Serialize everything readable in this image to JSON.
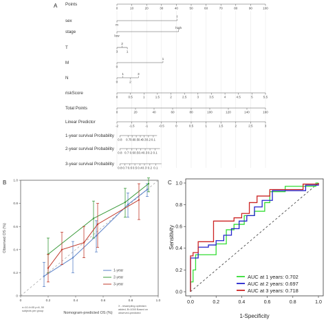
{
  "panels": {
    "a": "A",
    "b": "B",
    "c": "C"
  },
  "chart_data": [
    {
      "type": "nomogram",
      "rows": [
        {
          "label": "Points",
          "kind": "scale",
          "ticks": [
            0,
            10,
            20,
            30,
            40,
            50,
            60,
            70,
            80,
            90,
            100
          ],
          "min": 0,
          "max": 100
        },
        {
          "label": "sex",
          "kind": "factor",
          "line": [
            0,
            40.5
          ],
          "levels": [
            {
              "text": "m",
              "pos": 0,
              "side": "below"
            },
            {
              "text": "f",
              "pos": 40.5,
              "side": "above"
            }
          ]
        },
        {
          "label": "stage",
          "kind": "factor",
          "line": [
            0,
            41.5
          ],
          "levels": [
            {
              "text": "low",
              "pos": 0,
              "side": "below"
            },
            {
              "text": "high",
              "pos": 41.5,
              "side": "above"
            }
          ]
        },
        {
          "label": "T",
          "kind": "factor",
          "line": [
            0,
            7
          ],
          "levels": [
            {
              "text": "2",
              "pos": 3.5,
              "side": "above"
            },
            {
              "text": "3",
              "pos": 0,
              "side": "below"
            },
            {
              "text": "1",
              "pos": 7,
              "side": "below"
            }
          ]
        },
        {
          "label": "M",
          "kind": "factor",
          "line": [
            0,
            31
          ],
          "levels": [
            {
              "text": "0",
              "pos": 0,
              "side": "below"
            },
            {
              "text": "1",
              "pos": 31,
              "side": "above"
            }
          ]
        },
        {
          "label": "N",
          "kind": "factor",
          "line": [
            0,
            14.5
          ],
          "levels": [
            {
              "text": "1",
              "pos": 4,
              "side": "above"
            },
            {
              "text": "3",
              "pos": 14.5,
              "side": "above"
            },
            {
              "text": "0",
              "pos": 0,
              "side": "below"
            },
            {
              "text": "2",
              "pos": 9,
              "side": "below"
            }
          ]
        },
        {
          "label": "riskScore",
          "kind": "scale",
          "ticks": [
            0,
            0.5,
            1,
            1.5,
            2,
            2.5,
            3,
            3.5,
            4,
            4.5,
            5,
            5.5
          ],
          "min": 0,
          "max": 5.5
        },
        {
          "label": "Total Points",
          "kind": "scale",
          "ticks": [
            0,
            20,
            40,
            60,
            80,
            100,
            120,
            140,
            160
          ],
          "min": 0,
          "max": 160
        },
        {
          "label": "Linear Predictor",
          "kind": "scale",
          "ticks": [
            -2,
            -1.5,
            -1,
            -0.5,
            0,
            0.5,
            1,
            1.5,
            2,
            2.5,
            3
          ],
          "min": -2,
          "max": 3
        },
        {
          "label": "1-year survival Probability",
          "kind": "ticks",
          "ticks": [
            "0.8",
            "0.7",
            "0.6",
            "0.5",
            "0.4",
            "0.3",
            "0.2",
            "0.1"
          ],
          "pos": [
            0,
            0.22,
            0.33,
            0.44,
            0.55,
            0.65,
            0.77,
            0.9
          ],
          "span": [
            0.02,
            0.27
          ]
        },
        {
          "label": "2-year survival Probability",
          "kind": "ticks",
          "ticks": [
            "0.8",
            "0.7",
            "0.6",
            "0.5",
            "0.4",
            "0.3",
            "0.2",
            "0.1"
          ],
          "pos": [
            0,
            0.17,
            0.3,
            0.41,
            0.52,
            0.63,
            0.75,
            0.88
          ],
          "span": [
            0.02,
            0.29
          ]
        },
        {
          "label": "3-year survival Probability",
          "kind": "ticks",
          "ticks": [
            "0.8",
            "0.7",
            "0.6",
            "0.5",
            "0.4",
            "0.3",
            "0.2",
            "0.1"
          ],
          "pos": [
            0,
            0.12,
            0.24,
            0.36,
            0.48,
            0.59,
            0.72,
            0.86
          ],
          "span": [
            0.02,
            0.3
          ]
        }
      ]
    },
    {
      "type": "line",
      "xlabel": "Nomogram-predicted OS (%)",
      "ylabel": "Observed OS (%)",
      "xlim": [
        0,
        1
      ],
      "ylim": [
        0,
        1
      ],
      "xticks": [
        "0",
        "0.2",
        "0.4",
        "0.6",
        "0.8",
        "1.0"
      ],
      "yticks": [
        "0",
        "0.2",
        "0.4",
        "0.6",
        "0.8",
        "1.0"
      ],
      "legend_position": "bottom-right",
      "note_left": "n=10.4<05 p=6, 50\nsubjects per group",
      "note_right": "X - resampling optimism\nadded, B=1000 Based on\nobserved-predicted",
      "series": [
        {
          "name": "1-year",
          "color": "#5a82c8",
          "x": [
            0.17,
            0.38,
            0.55,
            0.78,
            0.92
          ],
          "y": [
            0.17,
            0.33,
            0.52,
            0.79,
            0.92
          ],
          "err": [
            [
              0.08,
              0.29
            ],
            [
              0.2,
              0.47
            ],
            [
              0.38,
              0.65
            ],
            [
              0.68,
              0.89
            ],
            [
              0.86,
              0.97
            ]
          ]
        },
        {
          "name": "2-year",
          "color": "#3a9a3a",
          "x": [
            0.2,
            0.53,
            0.76,
            0.93
          ],
          "y": [
            0.36,
            0.67,
            0.81,
            0.97
          ],
          "err": [
            [
              0.2,
              0.5
            ],
            [
              0.5,
              0.82
            ],
            [
              0.68,
              0.93
            ],
            [
              0.9,
              1.02
            ]
          ]
        },
        {
          "name": "3-year",
          "color": "#c0392b",
          "x": [
            0.2,
            0.3,
            0.46,
            0.56,
            0.86
          ],
          "y": [
            0.24,
            0.4,
            0.46,
            0.62,
            0.83
          ],
          "err": [
            [
              0.12,
              0.36
            ],
            [
              0.27,
              0.55
            ],
            [
              0.33,
              0.6
            ],
            [
              0.42,
              0.8
            ],
            [
              0.66,
              0.97
            ]
          ]
        }
      ]
    },
    {
      "type": "line",
      "xlabel": "1-Specificity",
      "ylabel": "Sensitivity",
      "xlim": [
        0,
        1
      ],
      "ylim": [
        0,
        1
      ],
      "xticks": [
        "0.0",
        "0.2",
        "0.4",
        "0.6",
        "0.8",
        "1.0"
      ],
      "yticks": [
        "0.0",
        "0.2",
        "0.4",
        "0.6",
        "0.8",
        "1.0"
      ],
      "legend_position": "bottom-right",
      "series": [
        {
          "name": "AUC at 1 years: 0.702",
          "color": "#33dd33",
          "points": [
            [
              0,
              0
            ],
            [
              0,
              0.09
            ],
            [
              0.02,
              0.09
            ],
            [
              0.02,
              0.2
            ],
            [
              0.04,
              0.2
            ],
            [
              0.04,
              0.34
            ],
            [
              0.2,
              0.34
            ],
            [
              0.2,
              0.44
            ],
            [
              0.28,
              0.44
            ],
            [
              0.28,
              0.57
            ],
            [
              0.34,
              0.57
            ],
            [
              0.34,
              0.62
            ],
            [
              0.42,
              0.62
            ],
            [
              0.42,
              0.7
            ],
            [
              0.5,
              0.7
            ],
            [
              0.5,
              0.74
            ],
            [
              0.58,
              0.74
            ],
            [
              0.58,
              0.82
            ],
            [
              0.62,
              0.82
            ],
            [
              0.62,
              0.92
            ],
            [
              0.74,
              0.92
            ],
            [
              0.74,
              0.97
            ],
            [
              0.98,
              0.97
            ],
            [
              0.98,
              1
            ],
            [
              1,
              1
            ]
          ]
        },
        {
          "name": "AUC at 2 years: 0.697",
          "color": "#2222cc",
          "points": [
            [
              0,
              0
            ],
            [
              0,
              0.31
            ],
            [
              0.06,
              0.31
            ],
            [
              0.06,
              0.41
            ],
            [
              0.14,
              0.41
            ],
            [
              0.14,
              0.43
            ],
            [
              0.2,
              0.43
            ],
            [
              0.2,
              0.47
            ],
            [
              0.26,
              0.47
            ],
            [
              0.26,
              0.52
            ],
            [
              0.32,
              0.52
            ],
            [
              0.32,
              0.58
            ],
            [
              0.38,
              0.58
            ],
            [
              0.38,
              0.65
            ],
            [
              0.44,
              0.65
            ],
            [
              0.44,
              0.7
            ],
            [
              0.5,
              0.7
            ],
            [
              0.5,
              0.78
            ],
            [
              0.56,
              0.78
            ],
            [
              0.56,
              0.84
            ],
            [
              0.64,
              0.84
            ],
            [
              0.64,
              0.93
            ],
            [
              0.9,
              0.93
            ],
            [
              0.9,
              0.98
            ],
            [
              1,
              0.98
            ],
            [
              1,
              1
            ]
          ]
        },
        {
          "name": "AUC at 3 years: 0.718",
          "color": "#cc2222",
          "points": [
            [
              0,
              0
            ],
            [
              0,
              0.33
            ],
            [
              0.02,
              0.33
            ],
            [
              0.02,
              0.36
            ],
            [
              0.06,
              0.36
            ],
            [
              0.06,
              0.46
            ],
            [
              0.18,
              0.46
            ],
            [
              0.18,
              0.65
            ],
            [
              0.34,
              0.65
            ],
            [
              0.34,
              0.68
            ],
            [
              0.4,
              0.68
            ],
            [
              0.4,
              0.72
            ],
            [
              0.46,
              0.72
            ],
            [
              0.46,
              0.82
            ],
            [
              0.52,
              0.82
            ],
            [
              0.52,
              0.88
            ],
            [
              0.62,
              0.88
            ],
            [
              0.62,
              0.94
            ],
            [
              0.88,
              0.94
            ],
            [
              0.88,
              0.99
            ],
            [
              1,
              0.99
            ],
            [
              1,
              1
            ]
          ]
        }
      ]
    }
  ]
}
